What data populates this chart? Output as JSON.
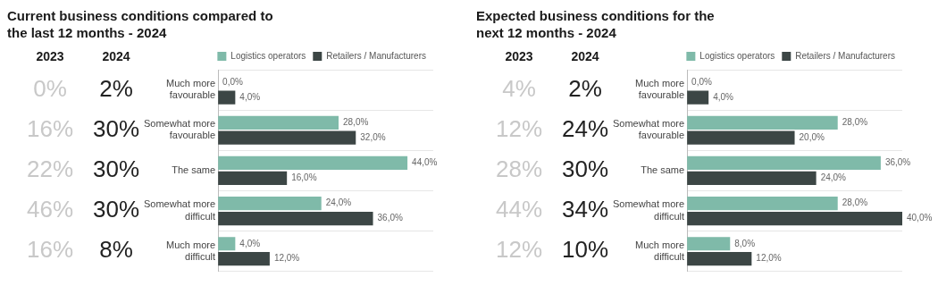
{
  "chart_data": [
    {
      "type": "bar",
      "orientation": "horizontal",
      "title": "Current business conditions compared to the last 12 months - 2024",
      "categories": [
        "Much more favourable",
        "Somewhat more favourable",
        "The same",
        "Somewhat more difficult",
        "Much more difficult"
      ],
      "series": [
        {
          "name": "Logistics operators",
          "color": "#7fbaa9",
          "values": [
            0,
            28,
            44,
            24,
            4
          ],
          "value_labels": [
            "0,0%",
            "28,0%",
            "44,0%",
            "24,0%",
            "4,0%"
          ]
        },
        {
          "name": "Retailers / Manufacturers",
          "color": "#3c4645",
          "values": [
            4,
            32,
            16,
            36,
            12
          ],
          "value_labels": [
            "4,0%",
            "32,0%",
            "16,0%",
            "36,0%",
            "12,0%"
          ]
        }
      ],
      "annotations": [
        "2023",
        "2024",
        "0%",
        "2%",
        "16%",
        "30%",
        "22%",
        "30%",
        "46%",
        "30%",
        "16%",
        "8%"
      ],
      "legend": "top right",
      "grid": "y"
    },
    {
      "type": "bar",
      "orientation": "horizontal",
      "title": "Expected business conditions for the next 12 months - 2024",
      "categories": [
        "Much more favourable",
        "Somewhat more favourable",
        "The same",
        "Somewhat more difficult",
        "Much more difficult"
      ],
      "series": [
        {
          "name": "Logistics operators",
          "color": "#7fbaa9",
          "values": [
            0,
            28,
            36,
            28,
            8
          ],
          "value_labels": [
            "0,0%",
            "28,0%",
            "36,0%",
            "28,0%",
            "8,0%"
          ]
        },
        {
          "name": "Retailers / Manufacturers",
          "color": "#3c4645",
          "values": [
            4,
            20,
            24,
            40,
            12
          ],
          "value_labels": [
            "4,0%",
            "20,0%",
            "24,0%",
            "40,0%",
            "12,0%"
          ]
        }
      ],
      "annotations": [
        "2023",
        "2024",
        "4%",
        "2%",
        "12%",
        "24%",
        "28%",
        "30%",
        "44%",
        "34%",
        "12%",
        "10%"
      ],
      "legend": "top right",
      "grid": "y"
    }
  ]
}
